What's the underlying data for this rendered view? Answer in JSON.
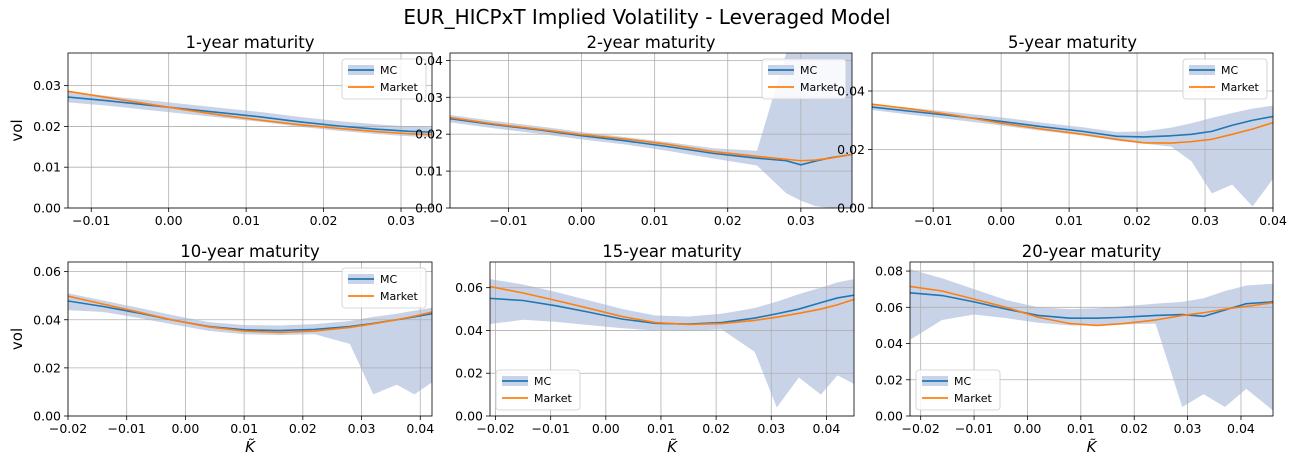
{
  "figure": {
    "title": "EUR_HICPxT Implied Volatility - Leveraged Model"
  },
  "colors": {
    "mc": "#1f77b4",
    "market": "#ff7f0e",
    "band": "#c9d3e8",
    "grid": "#b0b0b0"
  },
  "chart_data": [
    {
      "type": "line",
      "title": "1-year maturity",
      "xlabel": "",
      "ylabel": "vol",
      "xlim": [
        -0.013,
        0.034
      ],
      "ylim": [
        0.0,
        0.038
      ],
      "xticks": [
        -0.01,
        0.0,
        0.01,
        0.02,
        0.03
      ],
      "xtick_labels": [
        "−0.01",
        "0.00",
        "0.01",
        "0.02",
        "0.03"
      ],
      "yticks": [
        0.0,
        0.01,
        0.02,
        0.03
      ],
      "ytick_labels": [
        "0.00",
        "0.01",
        "0.02",
        "0.03"
      ],
      "legend": {
        "position": "top-right",
        "entries": [
          "MC",
          "Market"
        ]
      },
      "x": [
        -0.013,
        -0.008,
        -0.003,
        0.002,
        0.007,
        0.012,
        0.017,
        0.022,
        0.027,
        0.031,
        0.034
      ],
      "series": [
        {
          "name": "MC",
          "values": [
            0.0272,
            0.0263,
            0.0253,
            0.0243,
            0.0233,
            0.0223,
            0.0211,
            0.0201,
            0.0193,
            0.0188,
            0.0186
          ]
        },
        {
          "name": "Market",
          "values": [
            0.0286,
            0.0271,
            0.0256,
            0.0241,
            0.0227,
            0.0215,
            0.0204,
            0.0195,
            0.0187,
            0.0182,
            0.018
          ]
        }
      ],
      "band": {
        "upper": [
          0.0285,
          0.0275,
          0.0265,
          0.0255,
          0.0245,
          0.0235,
          0.0223,
          0.0213,
          0.0205,
          0.02,
          0.0198
        ],
        "lower": [
          0.0259,
          0.0251,
          0.0241,
          0.0231,
          0.0221,
          0.0211,
          0.0199,
          0.0189,
          0.0181,
          0.0176,
          0.0174
        ]
      }
    },
    {
      "type": "line",
      "title": "2-year maturity",
      "xlabel": "",
      "ylabel": "",
      "xlim": [
        -0.018,
        0.037
      ],
      "ylim": [
        0.0,
        0.042
      ],
      "xticks": [
        -0.01,
        0.0,
        0.01,
        0.02,
        0.03
      ],
      "xtick_labels": [
        "−0.01",
        "0.00",
        "0.01",
        "0.02",
        "0.03"
      ],
      "yticks": [
        0.0,
        0.01,
        0.02,
        0.03,
        0.04
      ],
      "ytick_labels": [
        "0.00",
        "0.01",
        "0.02",
        "0.03",
        "0.04"
      ],
      "legend": {
        "position": "top-right",
        "entries": [
          "MC",
          "Market"
        ]
      },
      "x": [
        -0.018,
        -0.012,
        -0.006,
        0.0,
        0.006,
        0.012,
        0.018,
        0.024,
        0.028,
        0.03,
        0.032,
        0.034,
        0.037
      ],
      "series": [
        {
          "name": "MC",
          "values": [
            0.0242,
            0.0226,
            0.0212,
            0.0196,
            0.0182,
            0.0166,
            0.0148,
            0.0135,
            0.0128,
            0.0117,
            0.0127,
            0.0136,
            0.0145
          ]
        },
        {
          "name": "Market",
          "values": [
            0.0245,
            0.0228,
            0.0214,
            0.0199,
            0.0187,
            0.0172,
            0.0153,
            0.014,
            0.0132,
            0.0128,
            0.013,
            0.0135,
            0.0145
          ]
        }
      ],
      "band": {
        "upper": [
          0.0252,
          0.0236,
          0.0222,
          0.0206,
          0.0192,
          0.0178,
          0.0162,
          0.0155,
          0.042,
          0.042,
          0.042,
          0.042,
          0.042
        ],
        "lower": [
          0.0232,
          0.0216,
          0.0202,
          0.0186,
          0.0172,
          0.0154,
          0.0134,
          0.0115,
          0.004,
          0.002,
          0.0005,
          0.0,
          0.0
        ]
      }
    },
    {
      "type": "line",
      "title": "5-year maturity",
      "xlabel": "",
      "ylabel": "",
      "xlim": [
        -0.019,
        0.04
      ],
      "ylim": [
        0.0,
        0.053
      ],
      "xticks": [
        -0.01,
        0.0,
        0.01,
        0.02,
        0.03,
        0.04
      ],
      "xtick_labels": [
        "−0.01",
        "0.00",
        "0.01",
        "0.02",
        "0.03",
        "0.04"
      ],
      "yticks": [
        0.0,
        0.02,
        0.04
      ],
      "ytick_labels": [
        "0.00",
        "0.02",
        "0.04"
      ],
      "legend": {
        "position": "top-right",
        "entries": [
          "MC",
          "Market"
        ]
      },
      "x": [
        -0.019,
        -0.013,
        -0.007,
        0.0,
        0.006,
        0.012,
        0.017,
        0.021,
        0.025,
        0.028,
        0.031,
        0.034,
        0.037,
        0.04
      ],
      "series": [
        {
          "name": "MC",
          "values": [
            0.0345,
            0.033,
            0.0315,
            0.0296,
            0.0278,
            0.0262,
            0.0245,
            0.0243,
            0.0247,
            0.0252,
            0.0262,
            0.0283,
            0.03,
            0.0313
          ]
        },
        {
          "name": "Market",
          "values": [
            0.0355,
            0.0338,
            0.0318,
            0.029,
            0.027,
            0.0252,
            0.0235,
            0.0223,
            0.0222,
            0.0227,
            0.0235,
            0.0252,
            0.027,
            0.0292
          ]
        }
      ],
      "band": {
        "upper": [
          0.0355,
          0.0342,
          0.0328,
          0.031,
          0.0292,
          0.0276,
          0.026,
          0.0262,
          0.0275,
          0.029,
          0.0308,
          0.0325,
          0.034,
          0.035
        ],
        "lower": [
          0.0335,
          0.0318,
          0.0302,
          0.0282,
          0.0264,
          0.0248,
          0.023,
          0.022,
          0.021,
          0.016,
          0.005,
          0.008,
          0.0005,
          0.01
        ]
      }
    },
    {
      "type": "line",
      "title": "10-year maturity",
      "xlabel": "K̃",
      "ylabel": "vol",
      "xlim": [
        -0.02,
        0.042
      ],
      "ylim": [
        0.0,
        0.064
      ],
      "xticks": [
        -0.02,
        -0.01,
        0.0,
        0.01,
        0.02,
        0.03,
        0.04
      ],
      "xtick_labels": [
        "−0.02",
        "−0.01",
        "0.00",
        "0.01",
        "0.02",
        "0.03",
        "0.04"
      ],
      "yticks": [
        0.0,
        0.02,
        0.04,
        0.06
      ],
      "ytick_labels": [
        "0.00",
        "0.02",
        "0.04",
        "0.06"
      ],
      "legend": {
        "position": "top-right",
        "entries": [
          "MC",
          "Market"
        ]
      },
      "x": [
        -0.02,
        -0.014,
        -0.008,
        -0.002,
        0.004,
        0.01,
        0.016,
        0.022,
        0.028,
        0.032,
        0.036,
        0.039,
        0.042
      ],
      "series": [
        {
          "name": "MC",
          "values": [
            0.0478,
            0.0455,
            0.0428,
            0.0398,
            0.0372,
            0.0358,
            0.0355,
            0.036,
            0.0372,
            0.0385,
            0.04,
            0.0412,
            0.0425
          ]
        },
        {
          "name": "Market",
          "values": [
            0.0498,
            0.0465,
            0.0432,
            0.0398,
            0.037,
            0.0353,
            0.0347,
            0.0353,
            0.0368,
            0.0383,
            0.04,
            0.0415,
            0.0432
          ]
        }
      ],
      "band": {
        "upper": [
          0.051,
          0.048,
          0.045,
          0.0418,
          0.039,
          0.0378,
          0.0376,
          0.0382,
          0.0395,
          0.0412,
          0.0425,
          0.0438,
          0.045
        ],
        "lower": [
          0.044,
          0.0432,
          0.0408,
          0.038,
          0.0354,
          0.034,
          0.0336,
          0.034,
          0.03,
          0.009,
          0.013,
          0.009,
          0.014
        ]
      }
    },
    {
      "type": "line",
      "title": "15-year maturity",
      "xlabel": "K̃",
      "ylabel": "",
      "xlim": [
        -0.021,
        0.045
      ],
      "ylim": [
        0.0,
        0.072
      ],
      "xticks": [
        -0.02,
        -0.01,
        0.0,
        0.01,
        0.02,
        0.03,
        0.04
      ],
      "xtick_labels": [
        "−0.02",
        "−0.01",
        "0.00",
        "0.01",
        "0.02",
        "0.03",
        "0.04"
      ],
      "yticks": [
        0.0,
        0.02,
        0.04,
        0.06
      ],
      "ytick_labels": [
        "0.00",
        "0.02",
        "0.04",
        "0.06"
      ],
      "legend": {
        "position": "bottom-left",
        "entries": [
          "MC",
          "Market"
        ]
      },
      "x": [
        -0.021,
        -0.015,
        -0.009,
        -0.003,
        0.003,
        0.009,
        0.015,
        0.021,
        0.027,
        0.031,
        0.035,
        0.039,
        0.042,
        0.045
      ],
      "series": [
        {
          "name": "MC",
          "values": [
            0.055,
            0.054,
            0.0515,
            0.0485,
            0.0453,
            0.0433,
            0.043,
            0.0437,
            0.0458,
            0.0478,
            0.05,
            0.053,
            0.0552,
            0.0565
          ]
        },
        {
          "name": "Market",
          "values": [
            0.0605,
            0.0575,
            0.054,
            0.0503,
            0.0465,
            0.0437,
            0.0428,
            0.0432,
            0.0447,
            0.0462,
            0.048,
            0.05,
            0.052,
            0.0545
          ]
        }
      ],
      "band": {
        "upper": [
          0.064,
          0.0615,
          0.058,
          0.054,
          0.05,
          0.047,
          0.0465,
          0.0478,
          0.0505,
          0.0535,
          0.057,
          0.06,
          0.0625,
          0.064
        ],
        "lower": [
          0.043,
          0.045,
          0.044,
          0.0425,
          0.041,
          0.04,
          0.0398,
          0.0405,
          0.03,
          0.004,
          0.018,
          0.01,
          0.019,
          0.015
        ]
      }
    },
    {
      "type": "line",
      "title": "20-year maturity",
      "xlabel": "K̃",
      "ylabel": "",
      "xlim": [
        -0.022,
        0.046
      ],
      "ylim": [
        0.0,
        0.085
      ],
      "xticks": [
        -0.02,
        -0.01,
        0.0,
        0.01,
        0.02,
        0.03,
        0.04
      ],
      "xtick_labels": [
        "−0.02",
        "−0.01",
        "0.00",
        "0.01",
        "0.02",
        "0.03",
        "0.04"
      ],
      "yticks": [
        0.0,
        0.02,
        0.04,
        0.06,
        0.08
      ],
      "ytick_labels": [
        "0.00",
        "0.02",
        "0.04",
        "0.06",
        "0.08"
      ],
      "legend": {
        "position": "bottom-left",
        "entries": [
          "MC",
          "Market"
        ]
      },
      "x": [
        -0.022,
        -0.016,
        -0.01,
        -0.004,
        0.002,
        0.008,
        0.013,
        0.018,
        0.024,
        0.029,
        0.033,
        0.037,
        0.041,
        0.046
      ],
      "series": [
        {
          "name": "MC",
          "values": [
            0.068,
            0.0665,
            0.063,
            0.059,
            0.0555,
            0.054,
            0.054,
            0.0545,
            0.0555,
            0.056,
            0.055,
            0.0585,
            0.062,
            0.063
          ]
        },
        {
          "name": "Market",
          "values": [
            0.0715,
            0.069,
            0.0645,
            0.06,
            0.0545,
            0.051,
            0.05,
            0.051,
            0.053,
            0.0555,
            0.057,
            0.059,
            0.0605,
            0.0625
          ]
        }
      ],
      "band": {
        "upper": [
          0.081,
          0.076,
          0.07,
          0.064,
          0.06,
          0.059,
          0.0595,
          0.0605,
          0.062,
          0.063,
          0.065,
          0.069,
          0.072,
          0.073
        ],
        "lower": [
          0.042,
          0.053,
          0.056,
          0.054,
          0.0515,
          0.05,
          0.05,
          0.0505,
          0.051,
          0.005,
          0.012,
          0.005,
          0.015,
          0.003
        ]
      }
    }
  ]
}
